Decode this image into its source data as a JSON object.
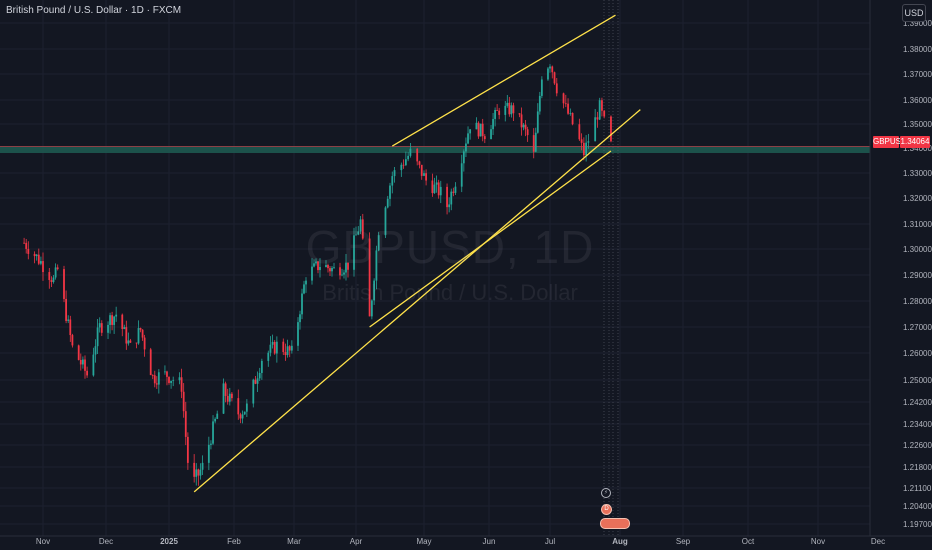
{
  "header": {
    "title": "British Pound / U.S. Dollar · 1D · FXCM",
    "currency": "USD"
  },
  "watermark": {
    "symbol": "GBPUSD, 1D",
    "name": "British Pound / U.S. Dollar"
  },
  "price_label": {
    "symbol": "GBPUSD",
    "price": "1.34064"
  },
  "events": {
    "flash_icon": "⚡",
    "dividend_icon": "D"
  },
  "colors": {
    "background": "#131722",
    "up": "#26a69a",
    "down": "#f23645",
    "trendline": "#ffe24a",
    "zone": "#1f5d52",
    "grid": "#1c2030"
  },
  "chart_data": {
    "type": "candlestick",
    "y_ticks": [
      "1.39000",
      "1.38000",
      "1.37000",
      "1.36000",
      "1.35000",
      "1.34000",
      "1.33000",
      "1.32000",
      "1.31000",
      "1.30000",
      "1.29000",
      "1.28000",
      "1.27000",
      "1.26000",
      "1.25000",
      "1.24200",
      "1.23400",
      "1.22600",
      "1.21800",
      "1.21100",
      "1.20400",
      "1.19700"
    ],
    "x_ticks": [
      {
        "label": "Nov",
        "bold": false
      },
      {
        "label": "Dec",
        "bold": false
      },
      {
        "label": "2025",
        "bold": true
      },
      {
        "label": "Feb",
        "bold": false
      },
      {
        "label": "Mar",
        "bold": false
      },
      {
        "label": "Apr",
        "bold": false
      },
      {
        "label": "May",
        "bold": false
      },
      {
        "label": "Jun",
        "bold": false
      },
      {
        "label": "Jul",
        "bold": false
      },
      {
        "label": "Aug",
        "bold": true
      },
      {
        "label": "Sep",
        "bold": false
      },
      {
        "label": "Oct",
        "bold": false
      },
      {
        "label": "Nov",
        "bold": false
      },
      {
        "label": "Dec",
        "bold": false
      }
    ],
    "last_price": 1.34064,
    "support_zone": [
      1.338,
      1.3408
    ],
    "close_path": [
      [
        "2024-10-23",
        1.3025
      ],
      [
        "2024-10-31",
        1.295
      ],
      [
        "2024-11-06",
        1.288
      ],
      [
        "2024-11-08",
        1.292
      ],
      [
        "2024-11-15",
        1.262
      ],
      [
        "2024-11-22",
        1.252
      ],
      [
        "2024-11-28",
        1.27
      ],
      [
        "2024-12-06",
        1.275
      ],
      [
        "2024-12-13",
        1.262
      ],
      [
        "2024-12-18",
        1.269
      ],
      [
        "2024-12-24",
        1.251
      ],
      [
        "2024-12-31",
        1.252
      ],
      [
        "2025-01-07",
        1.248
      ],
      [
        "2025-01-10",
        1.22
      ],
      [
        "2025-01-13",
        1.213
      ],
      [
        "2025-01-17",
        1.218
      ],
      [
        "2025-01-27",
        1.246
      ],
      [
        "2025-02-03",
        1.238
      ],
      [
        "2025-02-07",
        1.24
      ],
      [
        "2025-02-14",
        1.258
      ],
      [
        "2025-02-21",
        1.263
      ],
      [
        "2025-02-28",
        1.26
      ],
      [
        "2025-03-07",
        1.29
      ],
      [
        "2025-03-14",
        1.294
      ],
      [
        "2025-03-21",
        1.292
      ],
      [
        "2025-03-28",
        1.294
      ],
      [
        "2025-04-03",
        1.311
      ],
      [
        "2025-04-07",
        1.273
      ],
      [
        "2025-04-11",
        1.308
      ],
      [
        "2025-04-17",
        1.329
      ],
      [
        "2025-04-25",
        1.338
      ],
      [
        "2025-05-02",
        1.327
      ],
      [
        "2025-05-09",
        1.322
      ],
      [
        "2025-05-12",
        1.317
      ],
      [
        "2025-05-16",
        1.327
      ],
      [
        "2025-05-23",
        1.35
      ],
      [
        "2025-05-30",
        1.346
      ],
      [
        "2025-06-06",
        1.356
      ],
      [
        "2025-06-13",
        1.356
      ],
      [
        "2025-06-20",
        1.345
      ],
      [
        "2025-06-23",
        1.337
      ],
      [
        "2025-06-27",
        1.37
      ],
      [
        "2025-07-01",
        1.375
      ],
      [
        "2025-07-04",
        1.365
      ],
      [
        "2025-07-11",
        1.35
      ],
      [
        "2025-07-16",
        1.338
      ],
      [
        "2025-07-23",
        1.357
      ],
      [
        "2025-07-28",
        1.341
      ]
    ],
    "trendlines": [
      {
        "name": "upper-channel",
        "from": [
          "2025-04-17",
          1.3408
        ],
        "to": [
          "2025-07-30",
          1.393
        ]
      },
      {
        "name": "lower-channel",
        "from": [
          "2025-04-07",
          1.27
        ],
        "to": [
          "2025-07-28",
          1.3388
        ]
      },
      {
        "name": "long-trend",
        "from": [
          "2025-01-13",
          1.2095
        ],
        "to": [
          "2025-08-11",
          1.356
        ]
      }
    ]
  }
}
